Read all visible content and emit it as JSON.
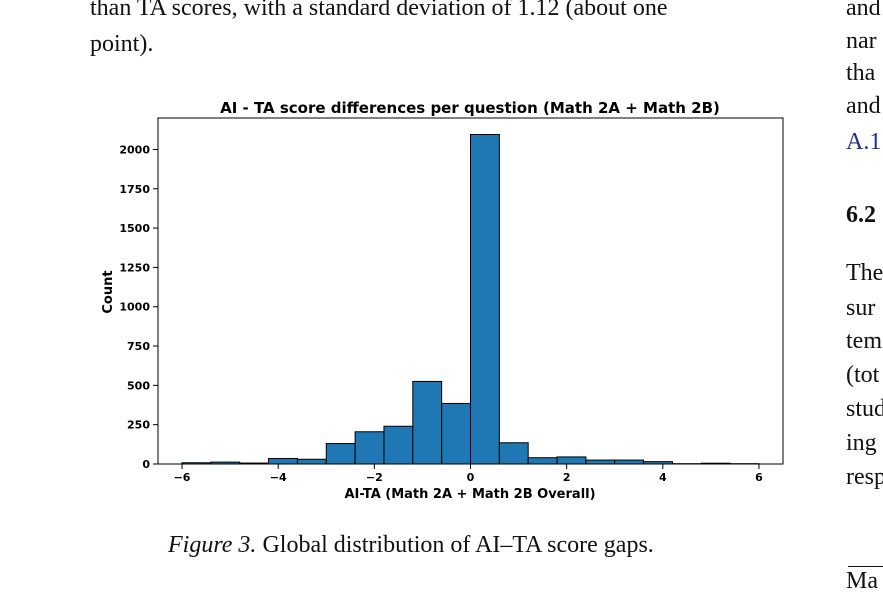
{
  "left_column": {
    "line1": "than TA scores, with a standard deviation of 1.12 (about one",
    "line2": "point)."
  },
  "right_column": {
    "lines": [
      "and",
      "nar",
      "tha",
      "and"
    ],
    "link": "A.1",
    "section_heading": "6.2",
    "para_lines": [
      "The",
      "sur",
      "tem",
      "(tot",
      "stud",
      "ing",
      "resp"
    ],
    "table_start": "Ma"
  },
  "caption": {
    "label": "Figure 3.",
    "text": "Global distribution of AI–TA score gaps."
  },
  "colors": {
    "bar_fill": "#1f77b4",
    "bar_edge": "#000000",
    "link": "#1f2f8f"
  },
  "chart_data": {
    "type": "bar",
    "title": "AI - TA score differences per question (Math 2A + Math 2B)",
    "xlabel": "AI-TA (Math 2A + Math 2B Overall)",
    "ylabel": "Count",
    "xlim": [
      -6.5,
      6.5
    ],
    "ylim": [
      0,
      2200
    ],
    "xticks": [
      -6,
      -4,
      -2,
      0,
      2,
      4,
      6
    ],
    "xtick_labels": [
      "−6",
      "−4",
      "−2",
      "0",
      "2",
      "4",
      "6"
    ],
    "yticks": [
      0,
      250,
      500,
      750,
      1000,
      1250,
      1500,
      1750,
      2000
    ],
    "ytick_labels": [
      "0",
      "250",
      "500",
      "750",
      "1000",
      "1250",
      "1500",
      "1750",
      "2000"
    ],
    "bin_edges": [
      -6,
      -5.4,
      -4.8,
      -4.2,
      -3.6,
      -3.0,
      -2.4,
      -1.8,
      -1.2,
      -0.6,
      0,
      0.6,
      1.2,
      1.8,
      2.4,
      3.0,
      3.6,
      4.2,
      4.8,
      5.4,
      6.0
    ],
    "values": [
      8,
      12,
      6,
      35,
      30,
      130,
      205,
      240,
      525,
      385,
      2095,
      135,
      40,
      45,
      25,
      25,
      15,
      2,
      5,
      2
    ]
  }
}
